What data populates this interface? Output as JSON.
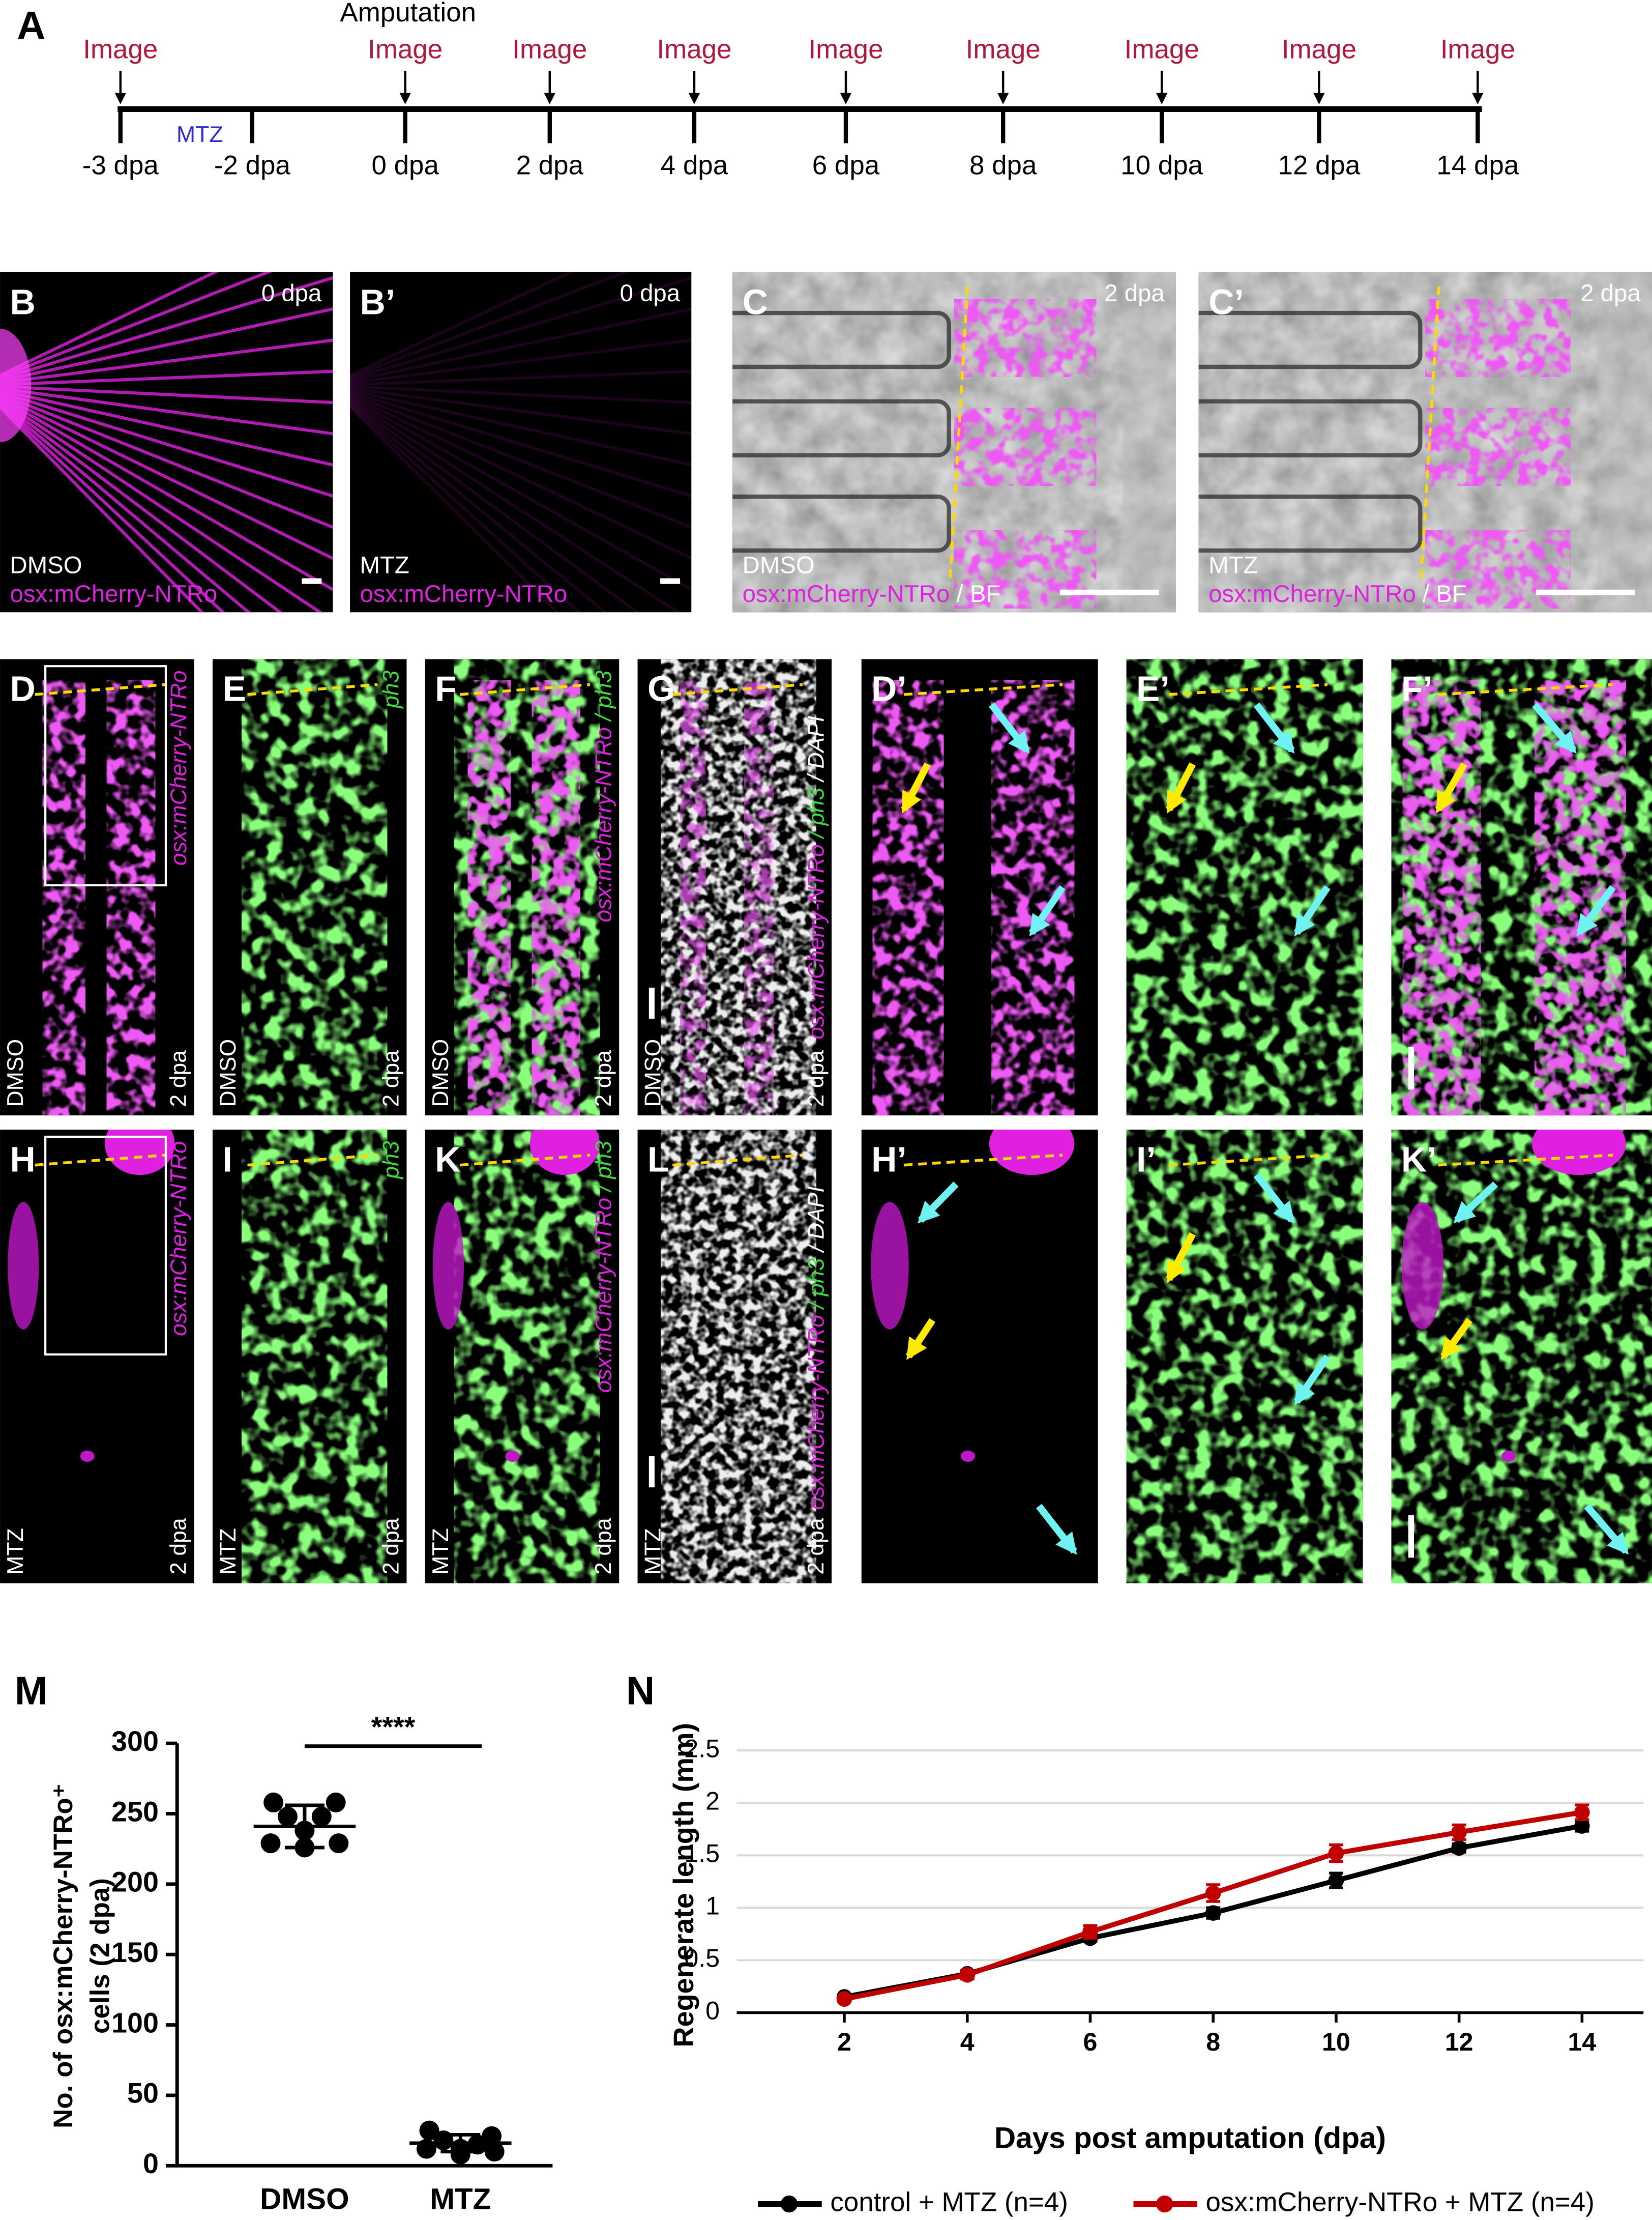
{
  "figure": {
    "timeline": {
      "letter": "A",
      "event": "Amputation",
      "treatment": "MTZ",
      "timepoints": [
        {
          "label": "-3 dpa",
          "image": "Image"
        },
        {
          "label": "-2 dpa"
        },
        {
          "label": "0 dpa",
          "image": "Image"
        },
        {
          "label": "2 dpa",
          "image": "Image"
        },
        {
          "label": "4 dpa",
          "image": "Image"
        },
        {
          "label": "6 dpa",
          "image": "Image"
        },
        {
          "label": "8 dpa",
          "image": "Image"
        },
        {
          "label": "10 dpa",
          "image": "Image"
        },
        {
          "label": "12 dpa",
          "image": "Image"
        },
        {
          "label": "14 dpa",
          "image": "Image"
        }
      ]
    },
    "panels": [
      {
        "letter": "B",
        "time": "0 dpa",
        "condition": "DMSO",
        "stain": [
          "osx:mCherry-NTRo"
        ]
      },
      {
        "letter": "B’",
        "time": "0 dpa",
        "condition": "MTZ",
        "stain": [
          "osx:mCherry-NTRo"
        ]
      },
      {
        "letter": "C",
        "time": "2 dpa",
        "condition": "DMSO",
        "stain": [
          "osx:mCherry-NTRo",
          " / BF"
        ]
      },
      {
        "letter": "C’",
        "time": "2 dpa",
        "condition": "MTZ",
        "stain": [
          "osx:mCherry-NTRo",
          " / BF"
        ]
      },
      {
        "letter": "D",
        "time": "2 dpa",
        "condition": "DMSO",
        "stain": [
          "osx:mCherry-NTRo"
        ]
      },
      {
        "letter": "E",
        "time": "2 dpa",
        "condition": "DMSO",
        "stain": [
          "ph3"
        ]
      },
      {
        "letter": "F",
        "time": "2 dpa",
        "condition": "DMSO",
        "stain": [
          "osx:mCherry-NTRo",
          " / ph3"
        ]
      },
      {
        "letter": "G",
        "time": "2 dpa",
        "condition": "DMSO",
        "stain": [
          "osx:mCherry-NTRo",
          " / ph3",
          " / DAPI"
        ]
      },
      {
        "letter": "D’"
      },
      {
        "letter": "E’"
      },
      {
        "letter": "F’"
      },
      {
        "letter": "H",
        "time": "2 dpa",
        "condition": "MTZ",
        "stain": [
          "osx:mCherry-NTRo"
        ]
      },
      {
        "letter": "I",
        "time": "2 dpa",
        "condition": "MTZ",
        "stain": [
          "ph3"
        ]
      },
      {
        "letter": "K",
        "time": "2 dpa",
        "condition": "MTZ",
        "stain": [
          "osx:mCherry-NTRo",
          " / ph3"
        ]
      },
      {
        "letter": "L",
        "time": "2 dpa",
        "condition": "MTZ",
        "stain": [
          "osx:mCherry-NTRo",
          " / ph3",
          " / DAPI"
        ]
      },
      {
        "letter": "H’"
      },
      {
        "letter": "I’"
      },
      {
        "letter": "K’"
      }
    ]
  },
  "chart_data": [
    {
      "type": "dot",
      "letter": "M",
      "y_label": [
        "No. of osx:mCherry-NTRo⁺",
        "cells (2 dpa)"
      ],
      "categories": [
        "DMSO",
        "MTZ"
      ],
      "points": [
        [
          258,
          258,
          248,
          248,
          238,
          229,
          229,
          226
        ],
        [
          25,
          21,
          18,
          15,
          12,
          12,
          10,
          8
        ]
      ],
      "means": [
        241,
        16
      ],
      "sd": [
        15,
        6
      ],
      "significance": "****",
      "color": "#000000",
      "ylim": [
        0,
        300
      ],
      "yticks": [
        0,
        50,
        100,
        150,
        200,
        250,
        300
      ]
    },
    {
      "type": "line",
      "letter": "N",
      "y_label": "Regenerate length (mm)",
      "x_label": "Days post amputation (dpa)",
      "x": [
        2,
        4,
        6,
        8,
        10,
        12,
        14
      ],
      "xlim": [
        0.25,
        15
      ],
      "xticks": [
        2,
        4,
        6,
        8,
        10,
        12,
        14
      ],
      "ylim": [
        0,
        2.5
      ],
      "yticks": [
        0,
        0.5,
        1,
        1.5,
        2,
        2.5
      ],
      "grid": true,
      "legend": "bottom",
      "series": [
        {
          "name": "control + MTZ (n=4)",
          "color": "#000000",
          "values": [
            0.15,
            0.37,
            0.71,
            0.95,
            1.26,
            1.57,
            1.78
          ],
          "errors": [
            0.02,
            0.03,
            0.03,
            0.05,
            0.07,
            0.04,
            0.05
          ]
        },
        {
          "name": "osx:mCherry-NTRo + MTZ (n=4)",
          "color": "#c00000",
          "values": [
            0.13,
            0.36,
            0.77,
            1.14,
            1.52,
            1.72,
            1.91
          ],
          "errors": [
            0.02,
            0.04,
            0.06,
            0.08,
            0.08,
            0.07,
            0.07
          ]
        }
      ]
    }
  ]
}
